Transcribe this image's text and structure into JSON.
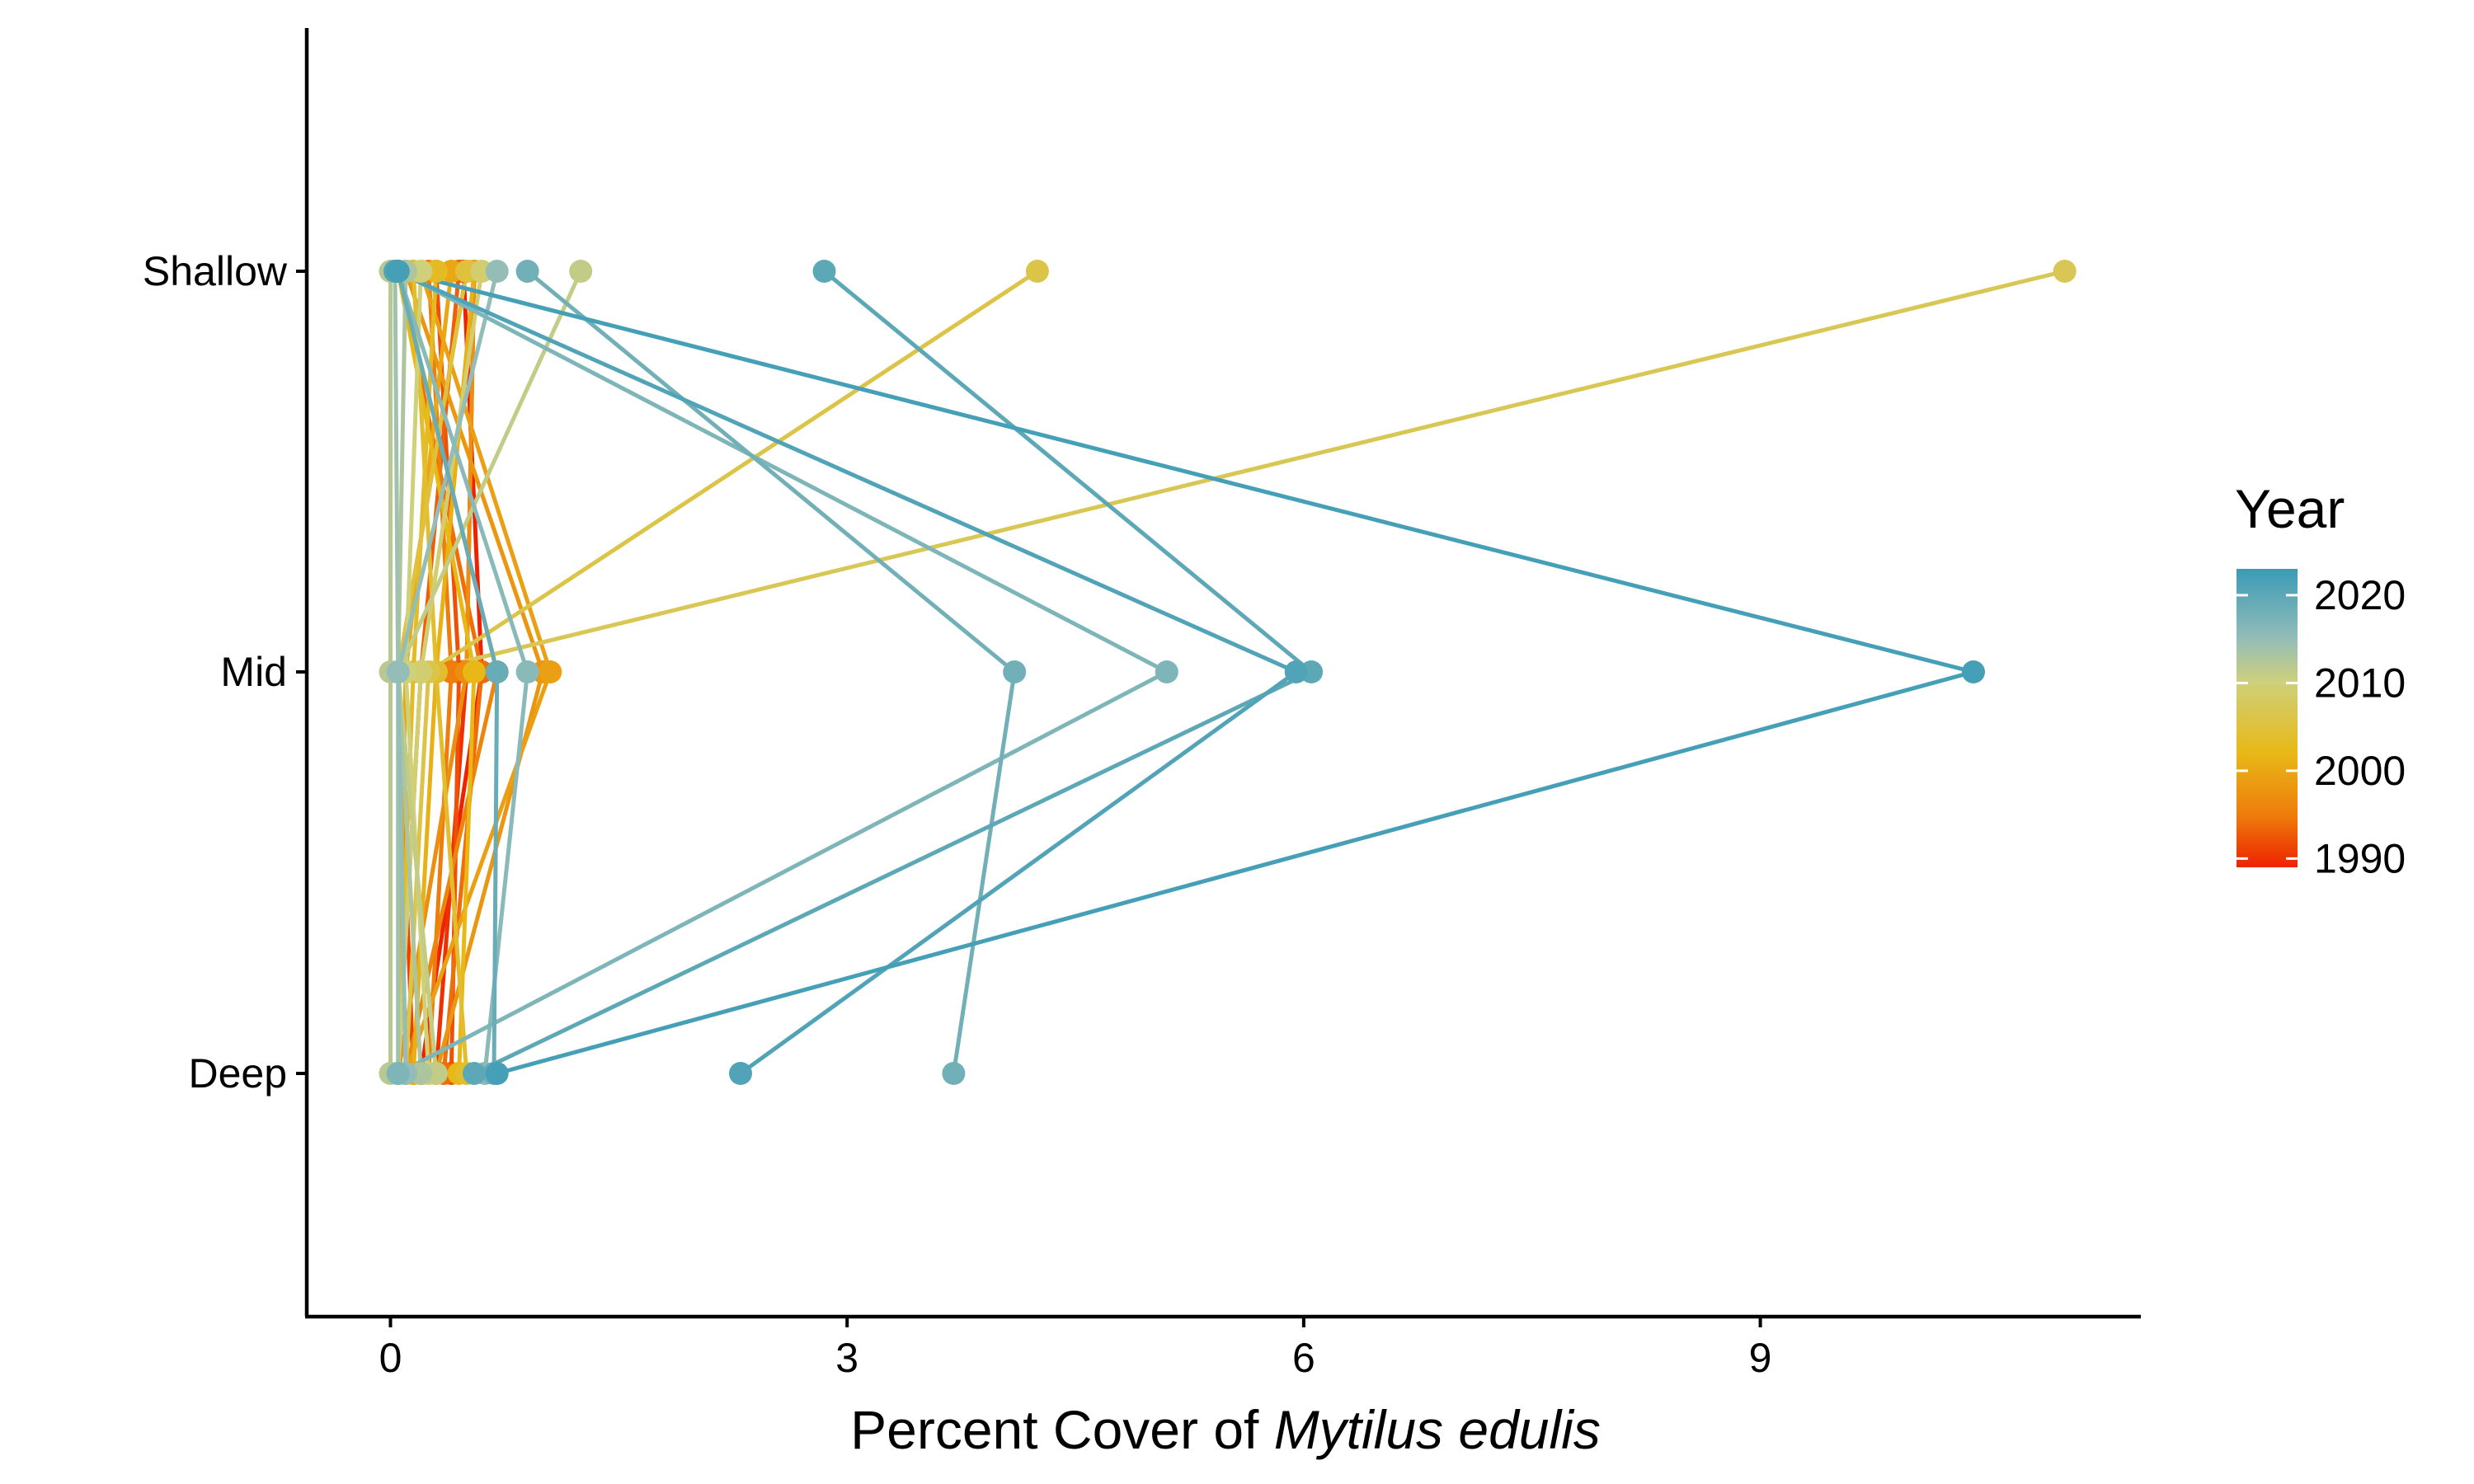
{
  "chart_data": {
    "type": "line",
    "title": "",
    "xlabel": {
      "prefix": "Percent Cover of ",
      "italic": "Mytilus edulis"
    },
    "ylabel": "",
    "x_ticks": [
      0,
      3,
      6,
      9
    ],
    "xlim": [
      -0.55,
      11.5
    ],
    "y_categories": [
      "Deep",
      "Mid",
      "Shallow"
    ],
    "grid": false,
    "legend": {
      "title": "Year",
      "position": "right",
      "type": "colorbar",
      "range": [
        1989,
        2023
      ],
      "breaks": [
        2020,
        2010,
        2000,
        1990
      ],
      "colors": [
        {
          "stop": 1989,
          "color": "#ee2200"
        },
        {
          "stop": 1995,
          "color": "#ee7d0c"
        },
        {
          "stop": 2002,
          "color": "#e8b816"
        },
        {
          "stop": 2010,
          "color": "#cfd07a"
        },
        {
          "stop": 2015,
          "color": "#94bdb8"
        },
        {
          "stop": 2023,
          "color": "#3a9bb6"
        }
      ]
    },
    "series": [
      {
        "year": 2022,
        "values": [
          0.7,
          10.4,
          0.05
        ]
      },
      {
        "year": 2021,
        "values": [
          2.3,
          5.95,
          0.03
        ]
      },
      {
        "year": 2020,
        "values": [
          0.55,
          6.05,
          2.85
        ]
      },
      {
        "year": 2019,
        "values": [
          0.68,
          0.7,
          0.05
        ]
      },
      {
        "year": 2018,
        "values": [
          3.7,
          4.1,
          0.9
        ]
      },
      {
        "year": 2017,
        "values": [
          0.05,
          5.1,
          0.05
        ]
      },
      {
        "year": 2016,
        "values": [
          0.62,
          0.9,
          0.05
        ]
      },
      {
        "year": 2015,
        "values": [
          0.1,
          0.05,
          0.7
        ]
      },
      {
        "year": 2014,
        "values": [
          0.05,
          0.05,
          0.03
        ]
      },
      {
        "year": 2013,
        "values": [
          0.2,
          0.05,
          0.1
        ]
      },
      {
        "year": 2012,
        "values": [
          0.0,
          0.0,
          0.0
        ]
      },
      {
        "year": 2011,
        "values": [
          0.3,
          0.05,
          1.25
        ]
      },
      {
        "year": 2010,
        "values": [
          0.25,
          0.1,
          0.2
        ]
      },
      {
        "year": 2009,
        "values": [
          0.05,
          0.2,
          0.6
        ]
      },
      {
        "year": 2007,
        "values": [
          0.05,
          0.2,
          11.0
        ]
      },
      {
        "year": 2006,
        "values": [
          0.1,
          0.25,
          4.25
        ]
      },
      {
        "year": 2005,
        "values": [
          0.3,
          0.05,
          0.5
        ]
      },
      {
        "year": 2004,
        "values": [
          0.5,
          0.3,
          0.15
        ]
      },
      {
        "year": 2003,
        "values": [
          0.05,
          0.15,
          0.3
        ]
      },
      {
        "year": 2002,
        "values": [
          0.45,
          0.55,
          0.05
        ]
      },
      {
        "year": 2001,
        "values": [
          0.15,
          0.3,
          0.55
        ]
      },
      {
        "year": 2000,
        "values": [
          0.05,
          0.1,
          0.4
        ]
      },
      {
        "year": 1999,
        "values": [
          0.1,
          1.05,
          0.2
        ]
      },
      {
        "year": 1998,
        "values": [
          0.3,
          1.0,
          0.1
        ]
      },
      {
        "year": 1997,
        "values": [
          0.05,
          0.5,
          0.55
        ]
      },
      {
        "year": 1996,
        "values": [
          0.1,
          0.7,
          0.05
        ]
      },
      {
        "year": 1995,
        "values": [
          0.25,
          0.4,
          0.25
        ]
      },
      {
        "year": 1994,
        "values": [
          0.35,
          0.6,
          0.05
        ]
      },
      {
        "year": 1993,
        "values": [
          0.05,
          0.2,
          0.45
        ]
      },
      {
        "year": 1992,
        "values": [
          0.4,
          0.45,
          0.3
        ]
      },
      {
        "year": 1991,
        "values": [
          0.15,
          0.05,
          0.5
        ]
      },
      {
        "year": 1990,
        "values": [
          0.3,
          0.5,
          0.55
        ]
      },
      {
        "year": 1989,
        "values": [
          0.2,
          0.6,
          0.48
        ]
      }
    ]
  }
}
